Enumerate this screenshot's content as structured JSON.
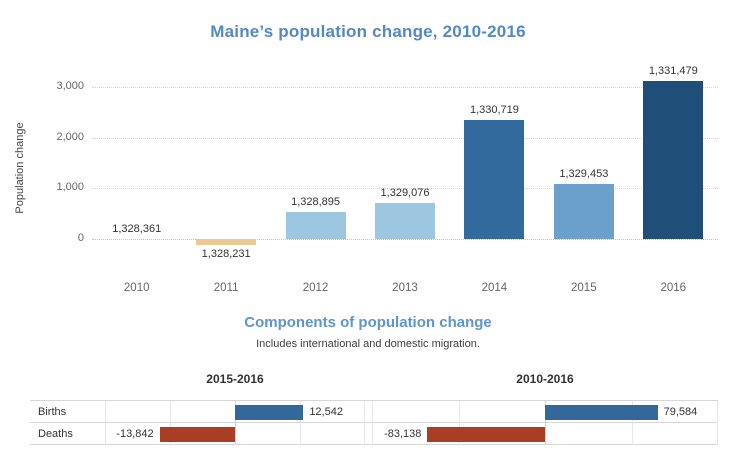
{
  "main_chart": {
    "title": "Maine’s population change, 2010-2016",
    "ylabel": "Population change"
  },
  "components_section": {
    "title": "Components of population change",
    "subtitle": "Includes international and domestic migration."
  },
  "colors": {
    "title_blue": "#5488c7",
    "section_blue": "#5d95cd",
    "axis_text": "#666666",
    "label_text": "#333333",
    "births_blue": "#35689a",
    "deaths_red": "#a83e24"
  },
  "chart_data": [
    {
      "type": "bar",
      "title": "Maine’s population change, 2010-2016",
      "xlabel": "",
      "ylabel": "Population change",
      "categories": [
        "2010",
        "2011",
        "2012",
        "2013",
        "2014",
        "2015",
        "2016"
      ],
      "values": [
        0,
        -130,
        534,
        715,
        2358,
        1092,
        3118
      ],
      "point_labels": [
        "1,328,361",
        "1,328,231",
        "1,328,895",
        "1,329,076",
        "1,330,719",
        "1,329,453",
        "1,331,479"
      ],
      "bar_colors": [
        "#9dc6e0",
        "#ecc893",
        "#9dc6e0",
        "#9dc6e0",
        "#336a9e",
        "#6ba0cc",
        "#1f4e79"
      ],
      "yticks": [
        0,
        1000,
        2000,
        3000
      ],
      "ytick_labels": [
        "0",
        "1,000",
        "2,000",
        "3,000"
      ],
      "ylim": [
        -700,
        3500
      ],
      "grid": "horizontal-dotted",
      "legend": "none"
    },
    {
      "type": "bar",
      "orientation": "horizontal",
      "title": "2015-2016",
      "categories": [
        "Births",
        "Deaths"
      ],
      "values": [
        12542,
        -13842
      ],
      "point_labels": [
        "12,542",
        "-13,842"
      ],
      "bar_colors": [
        "#35689a",
        "#a83e24"
      ]
    },
    {
      "type": "bar",
      "orientation": "horizontal",
      "title": "2010-2016",
      "categories": [
        "Births",
        "Deaths"
      ],
      "values": [
        79584,
        -83138
      ],
      "point_labels": [
        "79,584",
        "-83,138"
      ],
      "bar_colors": [
        "#35689a",
        "#a83e24"
      ]
    }
  ]
}
